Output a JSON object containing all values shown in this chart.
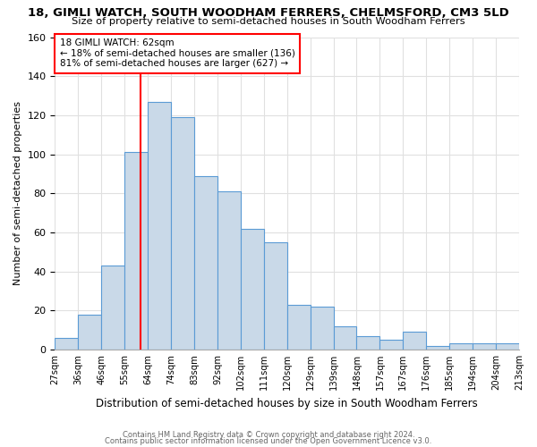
{
  "title": "18, GIMLI WATCH, SOUTH WOODHAM FERRERS, CHELMSFORD, CM3 5LD",
  "subtitle": "Size of property relative to semi-detached houses in South Woodham Ferrers",
  "xlabel": "Distribution of semi-detached houses by size in South Woodham Ferrers",
  "ylabel": "Number of semi-detached properties",
  "tick_labels": [
    "27sqm",
    "36sqm",
    "46sqm",
    "55sqm",
    "64sqm",
    "74sqm",
    "83sqm",
    "92sqm",
    "102sqm",
    "111sqm",
    "120sqm",
    "129sqm",
    "139sqm",
    "148sqm",
    "157sqm",
    "167sqm",
    "176sqm",
    "185sqm",
    "194sqm",
    "204sqm",
    "213sqm"
  ],
  "values": [
    6,
    18,
    43,
    101,
    127,
    119,
    89,
    81,
    62,
    55,
    23,
    22,
    12,
    7,
    5,
    9,
    2,
    3,
    3,
    3
  ],
  "bar_color": "#c9d9e8",
  "bar_edge_color": "#5b9bd5",
  "red_line_x": 3.69,
  "red_line_label": "18 GIMLI WATCH: 62sqm",
  "annotation_smaller": "← 18% of semi-detached houses are smaller (136)",
  "annotation_larger": "81% of semi-detached houses are larger (627) →",
  "annotation_box_color": "white",
  "annotation_box_edge": "red",
  "ylim": [
    0,
    160
  ],
  "yticks": [
    0,
    20,
    40,
    60,
    80,
    100,
    120,
    140,
    160
  ],
  "footer1": "Contains HM Land Registry data © Crown copyright and database right 2024.",
  "footer2": "Contains public sector information licensed under the Open Government Licence v3.0.",
  "background_color": "white",
  "grid_color": "#e0e0e0"
}
